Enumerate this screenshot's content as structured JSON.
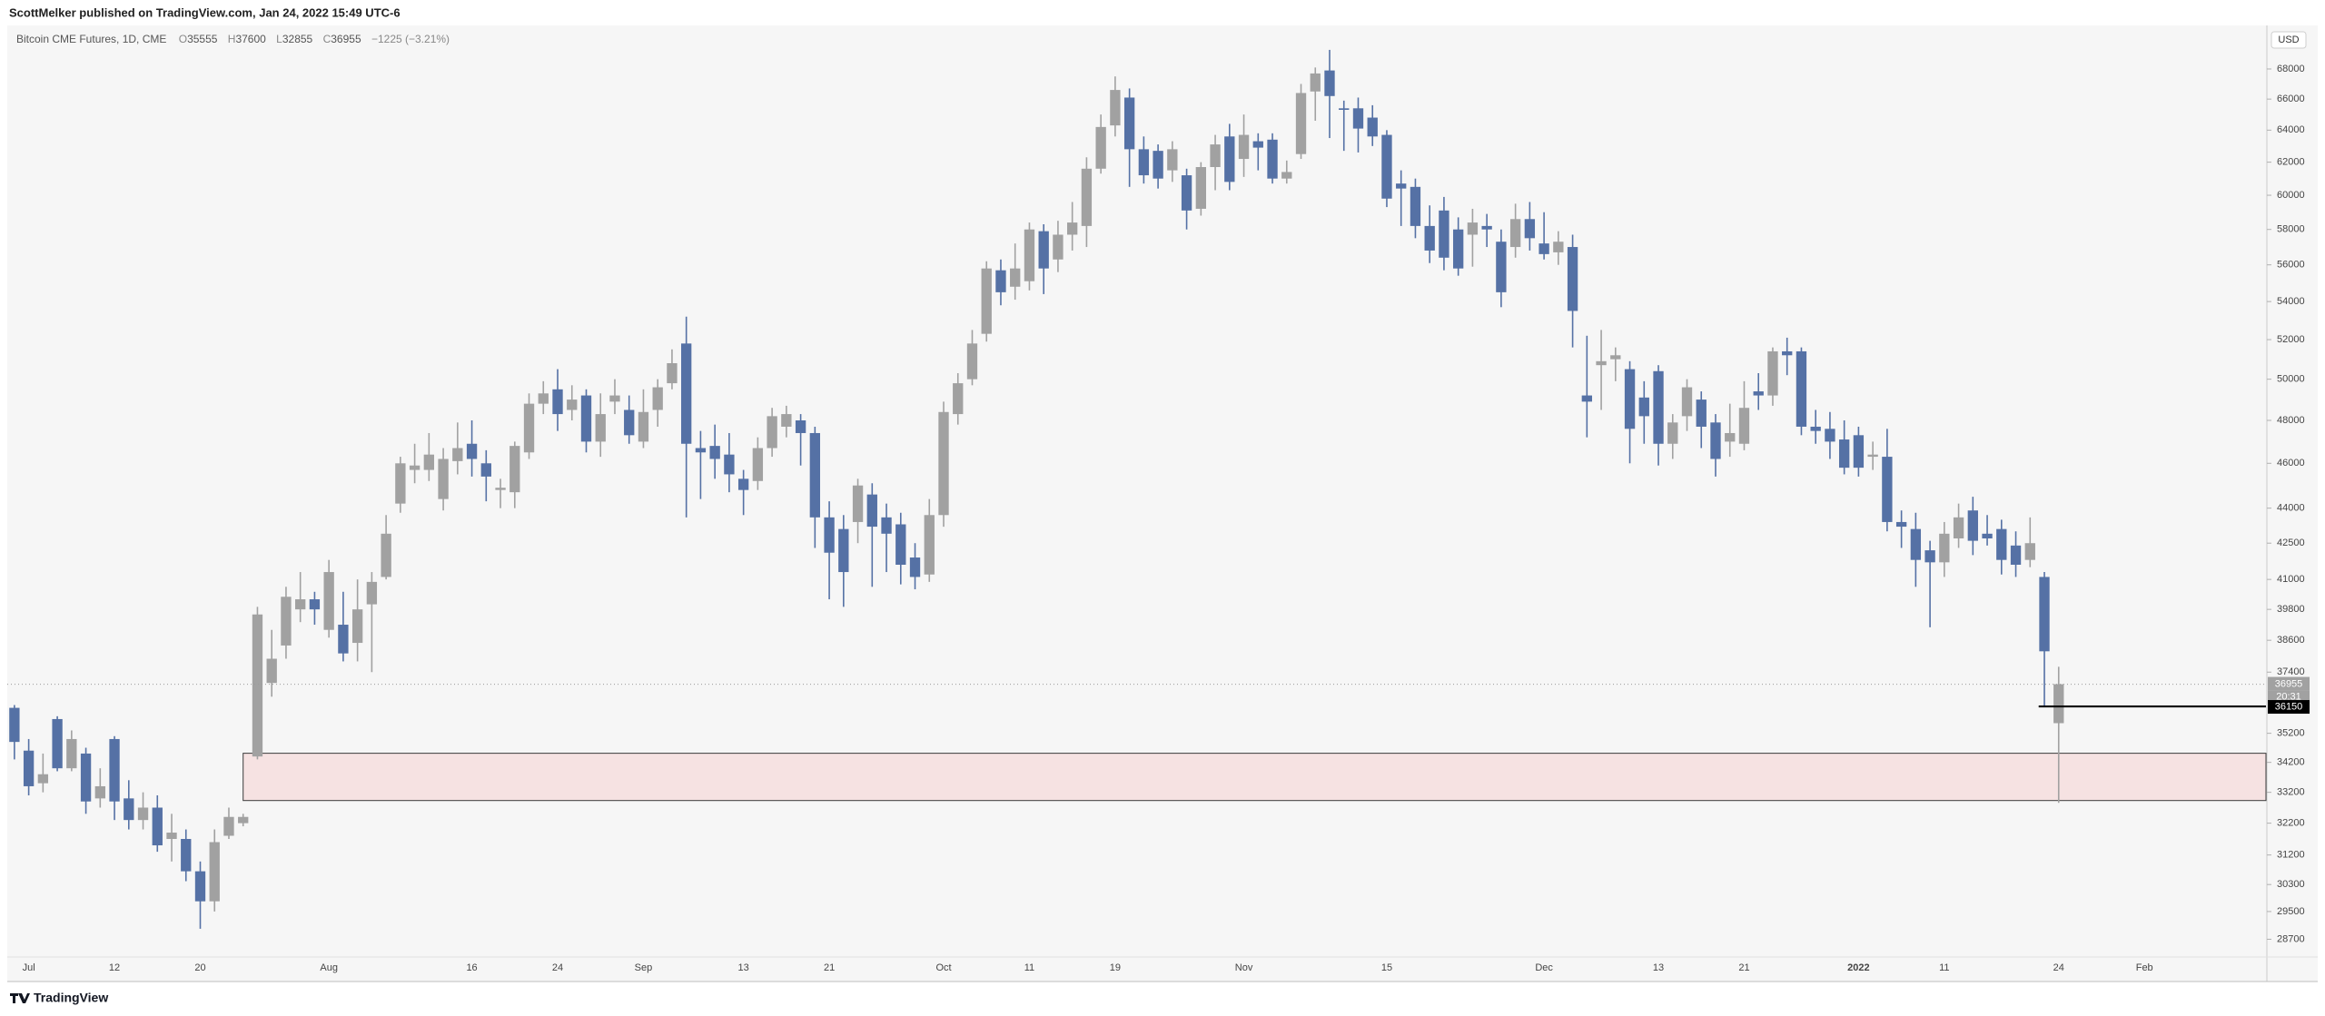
{
  "chart_data": {
    "type": "candlestick",
    "published": "ScottMelker published on TradingView.com, Jan 24, 2022 15:49 UTC-6",
    "title": "Bitcoin CME Futures, 1D, CME",
    "ohlc_labels": [
      "O",
      "H",
      "L",
      "C"
    ],
    "change_label": "−1225 (−3.21%)",
    "currency": "USD",
    "countdown": "20:31",
    "brand": "TradingView",
    "log_scale": true,
    "up_color": "#a1a1a1",
    "down_color": "#5571a5",
    "ylim": [
      28200,
      71000
    ],
    "yticks": [
      28700,
      29500,
      30300,
      31200,
      32200,
      33200,
      34200,
      35200,
      37400,
      38600,
      39800,
      41000,
      42500,
      44000,
      46000,
      48000,
      50000,
      52000,
      54000,
      56000,
      58000,
      60000,
      62000,
      64000,
      66000,
      68000
    ],
    "categories": [
      null,
      "Jul",
      null,
      null,
      null,
      null,
      null,
      "12",
      null,
      null,
      null,
      null,
      null,
      "20",
      null,
      null,
      null,
      null,
      null,
      null,
      null,
      null,
      "Aug",
      null,
      null,
      null,
      null,
      null,
      null,
      null,
      null,
      null,
      "16",
      null,
      null,
      null,
      null,
      null,
      "24",
      null,
      null,
      null,
      null,
      null,
      "Sep",
      null,
      null,
      null,
      null,
      null,
      null,
      "13",
      null,
      null,
      null,
      null,
      null,
      "21",
      null,
      null,
      null,
      null,
      null,
      null,
      null,
      "Oct",
      null,
      null,
      null,
      null,
      null,
      "11",
      null,
      null,
      null,
      null,
      null,
      "19",
      null,
      null,
      null,
      null,
      null,
      null,
      null,
      null,
      "Nov",
      null,
      null,
      null,
      null,
      null,
      null,
      null,
      null,
      null,
      "15",
      null,
      null,
      null,
      null,
      null,
      null,
      null,
      null,
      null,
      null,
      "Dec",
      null,
      null,
      null,
      null,
      null,
      null,
      null,
      "13",
      null,
      null,
      null,
      null,
      null,
      "21",
      null,
      null,
      null,
      null,
      null,
      null,
      null,
      "2022",
      null,
      null,
      null,
      null,
      null,
      "11",
      null,
      null,
      null,
      null,
      null,
      null,
      null,
      "24",
      null,
      null,
      null,
      null,
      null,
      "Feb",
      null,
      null,
      null,
      null,
      null,
      null,
      null,
      null
    ],
    "open": [
      36100,
      34600,
      33500,
      35700,
      34000,
      34500,
      33000,
      35000,
      33000,
      32300,
      32700,
      31700,
      31700,
      30700,
      29800,
      31800,
      32200,
      34400,
      37000,
      38400,
      39800,
      40200,
      39000,
      39200,
      38500,
      40000,
      41100,
      44200,
      45700,
      45700,
      44400,
      46100,
      46900,
      46000,
      44800,
      44700,
      46500,
      48800,
      49500,
      48500,
      49200,
      47000,
      48900,
      48500,
      47000,
      48500,
      49800,
      51800,
      46700,
      46800,
      46400,
      45300,
      45200,
      46700,
      47700,
      48000,
      47400,
      43600,
      43100,
      43400,
      44600,
      43600,
      43300,
      41900,
      41200,
      43700,
      48300,
      50000,
      52300,
      55700,
      54800,
      55100,
      57900,
      56300,
      57700,
      58200,
      61600,
      64300,
      66100,
      62800,
      62700,
      61500,
      61200,
      59200,
      61700,
      63600,
      62200,
      63300,
      63400,
      61000,
      62500,
      66500,
      67900,
      65400,
      65400,
      64800,
      63700,
      60700,
      60500,
      58200,
      59100,
      58000,
      57700,
      58200,
      57300,
      57000,
      58600,
      57200,
      56700,
      57000,
      49200,
      50700,
      51000,
      50500,
      49100,
      50400,
      46900,
      48200,
      49000,
      47900,
      47000,
      46900,
      49400,
      49200,
      51400,
      51400,
      47700,
      47600,
      47100,
      47300,
      46300,
      46300,
      43400,
      43100,
      42200,
      41700,
      42700,
      43900,
      42900,
      43100,
      42400,
      41800,
      41100,
      35555,
      null,
      null,
      null,
      null,
      null,
      null,
      null,
      null,
      null,
      null,
      null,
      null,
      null,
      null
    ],
    "high": [
      36200,
      35000,
      34500,
      35800,
      35300,
      34700,
      34000,
      35100,
      33600,
      33200,
      33100,
      32500,
      32000,
      31000,
      32000,
      32700,
      32500,
      39900,
      39000,
      40700,
      41300,
      40500,
      41800,
      40500,
      41000,
      41300,
      43700,
      46300,
      46900,
      47400,
      46700,
      47900,
      48000,
      46600,
      45300,
      47000,
      49300,
      49900,
      50500,
      49700,
      49500,
      49300,
      50000,
      49200,
      49500,
      50000,
      51500,
      53200,
      47500,
      47800,
      47400,
      45700,
      47200,
      48600,
      48700,
      48300,
      47700,
      44300,
      43700,
      45300,
      45100,
      44200,
      43800,
      42500,
      44400,
      48900,
      50300,
      52500,
      56200,
      56300,
      57200,
      58400,
      58300,
      58500,
      59600,
      62300,
      65000,
      67500,
      66700,
      63600,
      63100,
      63300,
      61600,
      62000,
      63700,
      64400,
      65000,
      63800,
      63800,
      62100,
      67000,
      68100,
      69300,
      65900,
      66100,
      65600,
      64000,
      61500,
      61000,
      59400,
      59900,
      58700,
      59200,
      58900,
      58000,
      59500,
      59600,
      59000,
      57900,
      57700,
      52200,
      52500,
      51600,
      50900,
      49900,
      50700,
      48300,
      50000,
      49400,
      48300,
      48800,
      49900,
      50300,
      51600,
      52100,
      51600,
      48500,
      48400,
      48000,
      47700,
      47000,
      47600,
      43900,
      43800,
      42600,
      43400,
      44200,
      44500,
      43700,
      43500,
      43000,
      43600,
      41300,
      37600,
      null,
      null,
      null,
      null,
      null,
      null,
      null,
      null,
      null,
      null,
      null,
      null,
      null,
      null
    ],
    "low": [
      34300,
      33100,
      33200,
      33900,
      33900,
      32500,
      32700,
      32300,
      32000,
      32000,
      31300,
      31000,
      30400,
      29000,
      29500,
      31700,
      32100,
      34300,
      36500,
      37900,
      39300,
      39200,
      38700,
      37800,
      37800,
      37400,
      41000,
      43800,
      45100,
      45200,
      43900,
      45500,
      45400,
      44300,
      44000,
      44000,
      46200,
      48300,
      47500,
      48000,
      46500,
      46300,
      48300,
      46900,
      46700,
      47700,
      49500,
      43600,
      44400,
      45300,
      44700,
      43700,
      44800,
      46300,
      47200,
      45900,
      42300,
      40200,
      39900,
      42500,
      40700,
      41300,
      40800,
      40600,
      40900,
      43200,
      47800,
      49700,
      51900,
      53800,
      54100,
      54600,
      54400,
      55600,
      56800,
      57000,
      61300,
      63600,
      60500,
      60700,
      60400,
      60800,
      58000,
      58800,
      60300,
      60300,
      61100,
      61500,
      60700,
      60700,
      62200,
      64600,
      63500,
      62700,
      62600,
      63000,
      59300,
      58200,
      57500,
      56100,
      55700,
      55400,
      55900,
      57000,
      53700,
      56400,
      56800,
      56300,
      56000,
      51600,
      47200,
      48500,
      49900,
      46000,
      46900,
      45900,
      46200,
      47500,
      46700,
      45400,
      46300,
      46600,
      48500,
      48700,
      50200,
      47300,
      46900,
      46200,
      45500,
      45400,
      45700,
      43000,
      42300,
      40700,
      39100,
      41100,
      42300,
      42000,
      42400,
      41200,
      41100,
      41500,
      36150,
      32855,
      null,
      null,
      null,
      null,
      null,
      null,
      null,
      null,
      null,
      null,
      null,
      null,
      null,
      null
    ],
    "close": [
      34900,
      33400,
      33800,
      34000,
      35000,
      32900,
      33400,
      32900,
      32300,
      32700,
      31500,
      31900,
      30700,
      29800,
      31600,
      32400,
      32400,
      39600,
      37900,
      40300,
      40200,
      39800,
      41300,
      38100,
      39800,
      40900,
      42900,
      46000,
      45900,
      46400,
      46200,
      46700,
      46200,
      45400,
      44900,
      46800,
      48800,
      49300,
      48300,
      49000,
      47000,
      48300,
      49200,
      47300,
      48400,
      49600,
      50800,
      46900,
      46500,
      46200,
      45500,
      44800,
      46700,
      48200,
      48300,
      47400,
      43600,
      42100,
      41300,
      45000,
      43200,
      42900,
      41600,
      41100,
      43700,
      48400,
      49800,
      51800,
      55800,
      54500,
      55800,
      58000,
      55800,
      57700,
      58400,
      61600,
      64200,
      66600,
      62800,
      61200,
      61000,
      62800,
      59100,
      61700,
      63100,
      60800,
      63700,
      62900,
      61000,
      61400,
      66400,
      67700,
      66200,
      65300,
      64100,
      63600,
      59800,
      60400,
      58200,
      56800,
      56400,
      55800,
      58400,
      58000,
      54500,
      58600,
      57500,
      56600,
      57300,
      53500,
      48900,
      50900,
      51200,
      47600,
      48200,
      46900,
      47900,
      49600,
      47700,
      46200,
      47400,
      48600,
      49200,
      51400,
      51200,
      47700,
      47500,
      47000,
      45800,
      45800,
      46400,
      43400,
      43200,
      41800,
      41700,
      42900,
      43600,
      42600,
      42700,
      41800,
      41600,
      42500,
      38180,
      36955,
      null,
      null,
      null,
      null,
      null,
      null,
      null,
      null,
      null,
      null,
      null,
      null,
      null,
      null
    ],
    "zone": {
      "from": 16,
      "top": 34510,
      "bottom": 32930,
      "color": "#f6e2e2"
    },
    "level": {
      "from": 142,
      "value": 36150
    }
  }
}
